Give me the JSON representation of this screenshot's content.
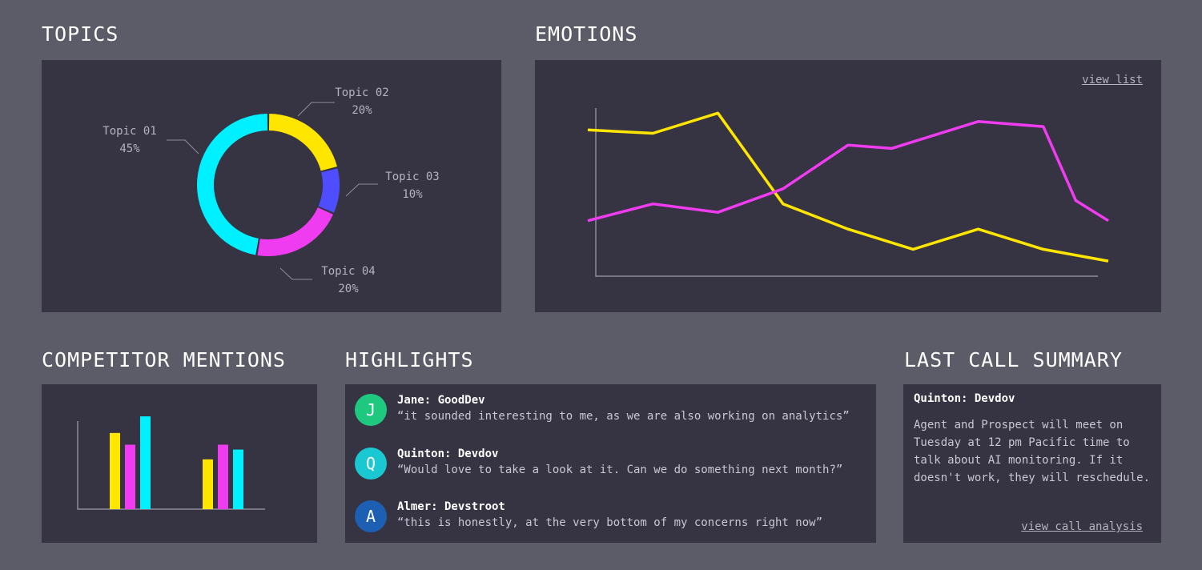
{
  "topics": {
    "title": "TOPICS",
    "slices": [
      {
        "name": "Topic 01",
        "percent_label": "45%",
        "value": 45,
        "color": "#00f0ff"
      },
      {
        "name": "Topic 02",
        "percent_label": "20%",
        "value": 20,
        "color": "#ffe600"
      },
      {
        "name": "Topic 03",
        "percent_label": "10%",
        "value": 10,
        "color": "#4e4dff"
      },
      {
        "name": "Topic 04",
        "percent_label": "20%",
        "value": 20,
        "color": "#f03cf0"
      }
    ]
  },
  "emotions": {
    "title": "EMOTIONS",
    "view_list_label": "view list"
  },
  "competitors": {
    "title": "COMPETITOR MENTIONS"
  },
  "highlights": {
    "title": "HIGHLIGHTS",
    "items": [
      {
        "initial": "J",
        "name": "Jane: GoodDev",
        "quote": "“it sounded interesting to me, as we are also working on analytics”",
        "color": "#1ec97f"
      },
      {
        "initial": "Q",
        "name": "Quinton: Devdov",
        "quote": "“Would love to take a look at it. Can we do something next month?”",
        "color": "#19c8d0"
      },
      {
        "initial": "A",
        "name": "Almer: Devstroot",
        "quote": "“this is honestly, at the very bottom of my concerns right now”",
        "color": "#1c5fb3"
      }
    ]
  },
  "summary": {
    "title": "LAST CALL SUMMARY",
    "name": "Quinton: Devdov",
    "text": "Agent and Prospect will meet on Tuesday at 12 pm Pacific time to talk about AI monitoring. If it doesn't work, they will reschedule.",
    "link_label": "view call analysis"
  },
  "chart_data": [
    {
      "type": "pie",
      "title": "TOPICS",
      "categories": [
        "Topic 01",
        "Topic 02",
        "Topic 03",
        "Topic 04"
      ],
      "values": [
        45,
        20,
        10,
        20
      ],
      "colors": [
        "#00f0ff",
        "#ffe600",
        "#4e4dff",
        "#f03cf0"
      ]
    },
    {
      "type": "line",
      "title": "EMOTIONS",
      "x": [
        0,
        1,
        2,
        3,
        4,
        5,
        6,
        7,
        8,
        9,
        10
      ],
      "ylim": [
        0,
        100
      ],
      "series": [
        {
          "color": "#ffe600",
          "values": [
            87,
            85,
            97,
            43,
            28,
            16,
            28,
            16,
            9,
            null,
            null
          ]
        },
        {
          "color": "#f03cf0",
          "values": [
            33,
            43,
            38,
            52,
            78,
            76,
            92,
            89,
            45,
            33,
            null
          ]
        }
      ],
      "series_x": [
        [
          0,
          1,
          2,
          3,
          4,
          5,
          6,
          7,
          8
        ],
        [
          0,
          1,
          2,
          3,
          4,
          4.67,
          6,
          7,
          7.5,
          8
        ]
      ]
    },
    {
      "type": "bar",
      "title": "COMPETITOR MENTIONS",
      "categories": [
        "",
        ""
      ],
      "ylim": [
        0,
        100
      ],
      "series": [
        {
          "color": "#ffe600",
          "values": [
            78,
            51
          ]
        },
        {
          "color": "#f03cf0",
          "values": [
            66,
            66
          ]
        },
        {
          "color": "#00f0ff",
          "values": [
            95,
            61
          ]
        }
      ]
    }
  ]
}
